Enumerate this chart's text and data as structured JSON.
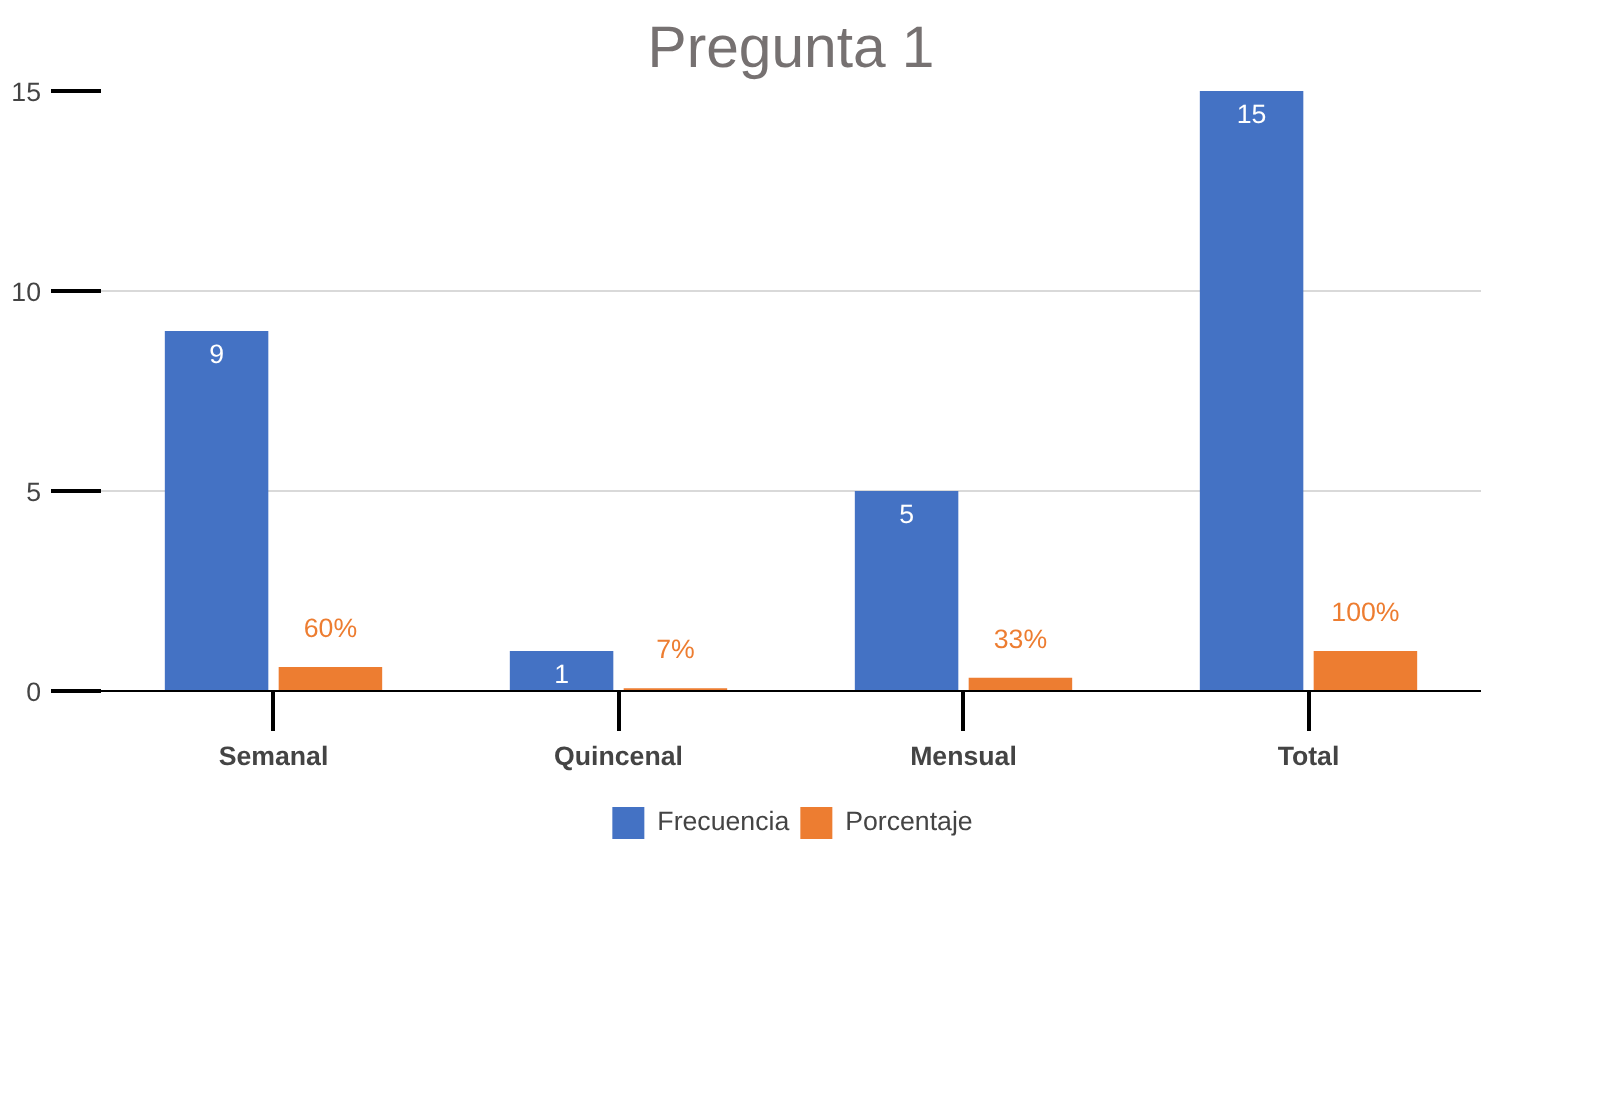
{
  "chart_data": {
    "type": "bar",
    "title": "Pregunta 1",
    "categories": [
      "Semanal",
      "Quincenal",
      "Mensual",
      "Total"
    ],
    "series": [
      {
        "name": "Frecuencia",
        "color": "#4472c4",
        "values": [
          9,
          1,
          5,
          15
        ],
        "value_labels": [
          "9",
          "1",
          "5",
          "15"
        ]
      },
      {
        "name": "Porcentaje",
        "color": "#ed7d31",
        "values": [
          0.6,
          0.07,
          0.33,
          1
        ],
        "value_labels": [
          "60%",
          "7%",
          "33%",
          "100%"
        ]
      }
    ],
    "ylim": [
      0,
      15
    ],
    "yticks": [
      0,
      5,
      10,
      15
    ],
    "grid": "y",
    "legend": "bottom"
  }
}
